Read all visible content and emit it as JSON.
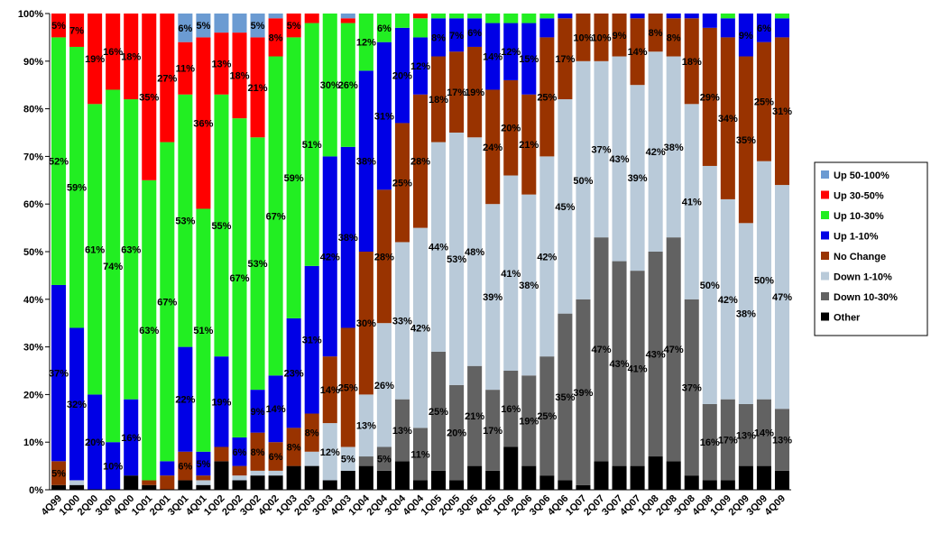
{
  "chart_data": {
    "type": "stacked_bar_100",
    "categories": [
      "4Q99",
      "1Q00",
      "2Q00",
      "3Q00",
      "4Q00",
      "1Q01",
      "2Q01",
      "3Q01",
      "4Q01",
      "1Q02",
      "2Q02",
      "3Q02",
      "4Q02",
      "1Q03",
      "2Q03",
      "3Q03",
      "4Q03",
      "1Q04",
      "2Q04",
      "3Q04",
      "4Q04",
      "1Q05",
      "2Q05",
      "3Q05",
      "4Q05",
      "1Q06",
      "2Q06",
      "3Q06",
      "4Q06",
      "1Q07",
      "2Q07",
      "3Q07",
      "4Q07",
      "1Q08",
      "2Q08",
      "3Q08",
      "4Q08",
      "1Q09",
      "2Q09",
      "3Q09",
      "4Q09"
    ],
    "ylim": [
      0,
      100
    ],
    "yticks": [
      {
        "value": 0,
        "label": "0%"
      },
      {
        "value": 10,
        "label": "10%"
      },
      {
        "value": 20,
        "label": "20%"
      },
      {
        "value": 30,
        "label": "30%"
      },
      {
        "value": 40,
        "label": "40%"
      },
      {
        "value": 50,
        "label": "50%"
      },
      {
        "value": 60,
        "label": "60%"
      },
      {
        "value": 70,
        "label": "70%"
      },
      {
        "value": 80,
        "label": "80%"
      },
      {
        "value": 90,
        "label": "90%"
      },
      {
        "value": 100,
        "label": "100%"
      }
    ],
    "legend": "right",
    "series": [
      {
        "name": "Up 50-100%",
        "color": "#6b9bd2",
        "values": [
          0,
          0,
          0,
          0,
          0,
          0,
          0,
          6,
          5,
          4,
          4,
          5,
          1,
          0,
          0,
          0,
          1,
          0,
          0,
          0,
          0,
          0,
          0,
          0,
          0,
          0,
          0,
          0,
          0,
          0,
          0,
          0,
          0,
          0,
          0,
          0,
          0,
          0,
          0,
          0,
          0
        ],
        "value_labels": [
          null,
          null,
          null,
          null,
          null,
          null,
          null,
          "6%",
          "5%",
          null,
          null,
          "5%",
          null,
          null,
          null,
          null,
          null,
          null,
          null,
          null,
          null,
          null,
          null,
          null,
          null,
          null,
          null,
          null,
          null,
          null,
          null,
          null,
          null,
          null,
          null,
          null,
          null,
          null,
          null,
          null,
          null
        ]
      },
      {
        "name": "Up 30-50%",
        "color": "#ff0000",
        "values": [
          5,
          7,
          19,
          16,
          18,
          35,
          27,
          11,
          36,
          13,
          18,
          21,
          8,
          5,
          2,
          0,
          1,
          0,
          0,
          0,
          1,
          0,
          0,
          0,
          0,
          0,
          0,
          0,
          0,
          0,
          0,
          0,
          0,
          0,
          0,
          0,
          0,
          0,
          0,
          0,
          0
        ],
        "value_labels": [
          "5%",
          "7%",
          "19%",
          "16%",
          "18%",
          "35%",
          "27%",
          "11%",
          "36%",
          "13%",
          "18%",
          "21%",
          "8%",
          "5%",
          null,
          null,
          null,
          null,
          null,
          null,
          null,
          null,
          null,
          null,
          null,
          null,
          null,
          null,
          null,
          null,
          null,
          null,
          null,
          null,
          null,
          null,
          null,
          null,
          null,
          null,
          null
        ]
      },
      {
        "name": "Up 10-30%",
        "color": "#22ee22",
        "values": [
          52,
          59,
          61,
          74,
          63,
          63,
          67,
          53,
          51,
          55,
          67,
          53,
          67,
          59,
          51,
          30,
          26,
          12,
          6,
          3,
          4,
          1,
          1,
          1,
          2,
          2,
          2,
          1,
          0,
          0,
          0,
          0,
          0,
          0,
          0,
          0,
          0,
          1,
          0,
          0,
          1
        ],
        "value_labels": [
          "52%",
          "59%",
          "61%",
          "74%",
          "63%",
          "63%",
          "67%",
          "53%",
          "51%",
          "55%",
          "67%",
          "53%",
          "67%",
          "59%",
          "51%",
          "30%",
          "26%",
          "12%",
          "6%",
          null,
          null,
          null,
          null,
          null,
          null,
          null,
          null,
          null,
          null,
          null,
          null,
          null,
          null,
          null,
          null,
          null,
          null,
          null,
          null,
          null,
          null
        ]
      },
      {
        "name": "Up 1-10%",
        "color": "#0000e6",
        "values": [
          37,
          32,
          20,
          10,
          16,
          0,
          3,
          22,
          5,
          19,
          6,
          9,
          14,
          23,
          31,
          42,
          38,
          38,
          31,
          20,
          12,
          8,
          7,
          6,
          14,
          12,
          15,
          4,
          1,
          0,
          0,
          0,
          1,
          0,
          1,
          1,
          3,
          4,
          9,
          6,
          4
        ],
        "value_labels": [
          "37%",
          "32%",
          "20%",
          "10%",
          "16%",
          null,
          null,
          "22%",
          "5%",
          "19%",
          "6%",
          "9%",
          "14%",
          "23%",
          "31%",
          "42%",
          "38%",
          "38%",
          "31%",
          "20%",
          "12%",
          "8%",
          "7%",
          "6%",
          "14%",
          "12%",
          "15%",
          null,
          null,
          null,
          null,
          null,
          null,
          null,
          null,
          null,
          null,
          null,
          "9%",
          "6%",
          null
        ]
      },
      {
        "name": "No Change",
        "color": "#993300",
        "values": [
          5,
          0,
          0,
          0,
          0,
          1,
          3,
          6,
          1,
          3,
          2,
          8,
          6,
          8,
          8,
          14,
          25,
          30,
          28,
          25,
          28,
          18,
          17,
          19,
          24,
          20,
          21,
          25,
          17,
          10,
          10,
          9,
          14,
          8,
          8,
          18,
          29,
          34,
          35,
          25,
          31
        ],
        "value_labels": [
          "5%",
          null,
          null,
          null,
          null,
          null,
          null,
          "6%",
          null,
          null,
          null,
          "8%",
          "6%",
          "8%",
          "8%",
          "14%",
          "25%",
          "30%",
          "28%",
          "25%",
          "28%",
          "18%",
          "17%",
          "19%",
          "24%",
          "20%",
          "21%",
          "25%",
          "17%",
          "10%",
          "10%",
          "9%",
          "14%",
          "8%",
          "8%",
          "18%",
          "29%",
          "34%",
          "35%",
          "25%",
          "31%"
        ]
      },
      {
        "name": "Down 1-10%",
        "color": "#b9cad9",
        "values": [
          0,
          1,
          0,
          0,
          0,
          0,
          0,
          0,
          1,
          0,
          1,
          1,
          1,
          0,
          3,
          12,
          5,
          13,
          26,
          33,
          42,
          44,
          53,
          48,
          39,
          41,
          38,
          42,
          45,
          50,
          37,
          43,
          39,
          42,
          38,
          41,
          50,
          42,
          38,
          50,
          47
        ],
        "value_labels": [
          null,
          null,
          null,
          null,
          null,
          null,
          null,
          null,
          null,
          null,
          null,
          null,
          null,
          null,
          null,
          "12%",
          "5%",
          "13%",
          "26%",
          "33%",
          "42%",
          "44%",
          "53%",
          "48%",
          "39%",
          "41%",
          "38%",
          "42%",
          "45%",
          "50%",
          "37%",
          "43%",
          "39%",
          "42%",
          "38%",
          "41%",
          "50%",
          "42%",
          "38%",
          "50%",
          "47%"
        ]
      },
      {
        "name": "Down 10-30%",
        "color": "#626262",
        "values": [
          0,
          0,
          0,
          0,
          0,
          0,
          0,
          0,
          0,
          0,
          0,
          0,
          0,
          0,
          0,
          0,
          0,
          2,
          5,
          13,
          11,
          25,
          20,
          21,
          17,
          16,
          19,
          25,
          35,
          39,
          47,
          43,
          41,
          43,
          47,
          37,
          16,
          17,
          13,
          14,
          13
        ],
        "value_labels": [
          null,
          null,
          null,
          null,
          null,
          null,
          null,
          null,
          null,
          null,
          null,
          null,
          null,
          null,
          null,
          null,
          null,
          null,
          "5%",
          "13%",
          "11%",
          "25%",
          "20%",
          "21%",
          "17%",
          "16%",
          "19%",
          "25%",
          "35%",
          "39%",
          "47%",
          "43%",
          "41%",
          "43%",
          "47%",
          "37%",
          "16%",
          "17%",
          "13%",
          "14%",
          "13%"
        ]
      },
      {
        "name": "Other",
        "color": "#000000",
        "values": [
          1,
          1,
          0,
          0,
          3,
          1,
          0,
          2,
          1,
          6,
          2,
          3,
          3,
          5,
          5,
          2,
          4,
          5,
          4,
          6,
          2,
          4,
          2,
          5,
          4,
          9,
          5,
          3,
          2,
          1,
          6,
          5,
          5,
          7,
          6,
          3,
          2,
          2,
          5,
          5,
          4
        ]
      }
    ]
  }
}
